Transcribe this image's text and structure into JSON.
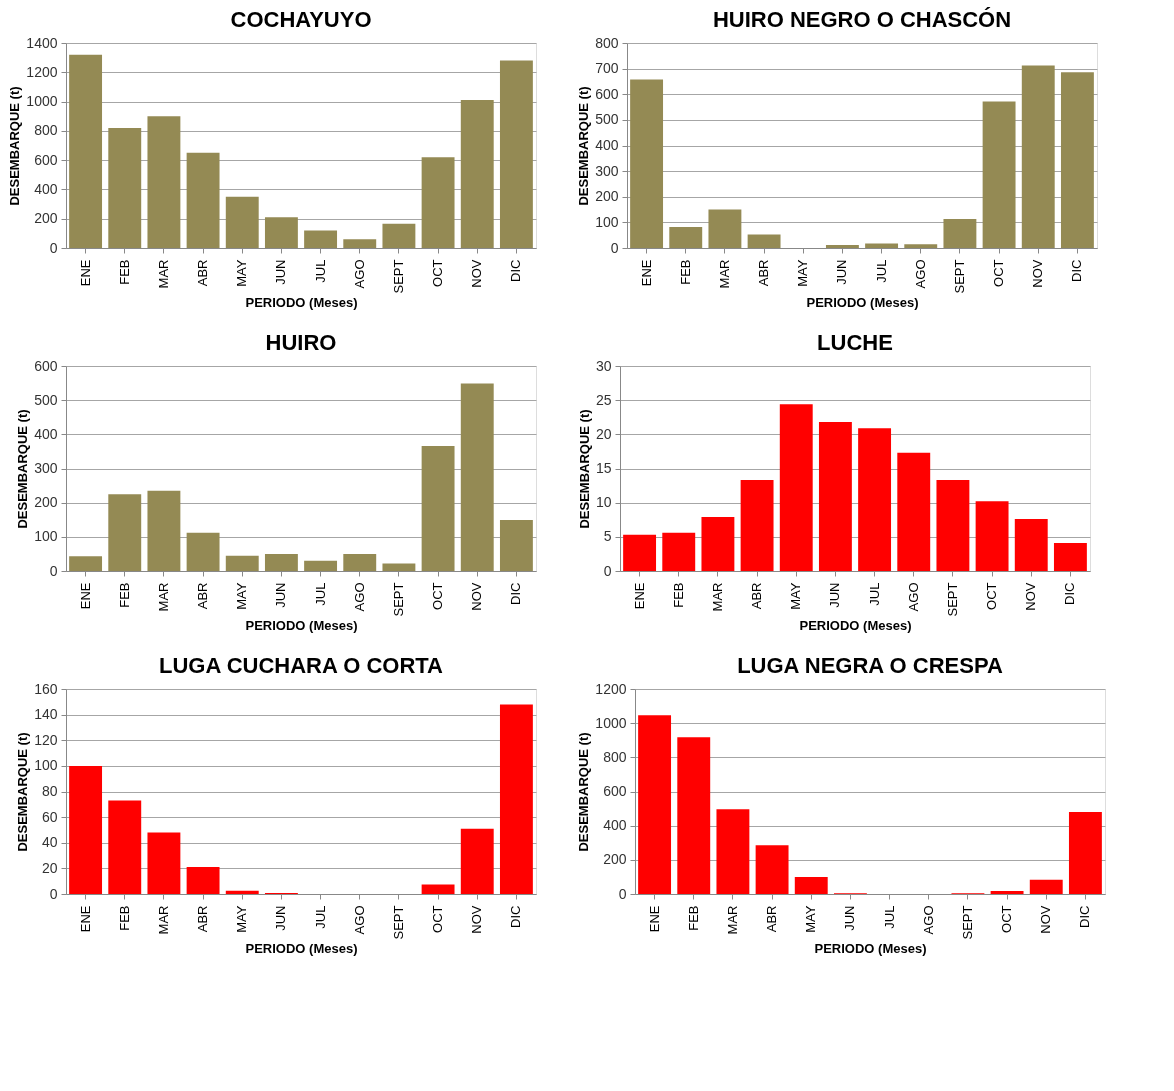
{
  "chart_data": [
    {
      "type": "bar",
      "title": "COCHAYUYO",
      "xlabel": "PERIODO (Meses)",
      "ylabel": "DESEMBARQUE (t)",
      "categories": [
        "ENE",
        "FEB",
        "MAR",
        "ABR",
        "MAY",
        "JUN",
        "JUL",
        "AGO",
        "SEPT",
        "OCT",
        "NOV",
        "DIC"
      ],
      "color": "#948a54",
      "values": [
        1320,
        820,
        900,
        650,
        350,
        210,
        120,
        60,
        165,
        620,
        1010,
        1280
      ],
      "ylim": [
        0,
        1400
      ],
      "yticks": [
        0,
        200,
        400,
        600,
        800,
        1000,
        1200,
        1400
      ],
      "grid": "y"
    },
    {
      "type": "bar",
      "title": "HUIRO NEGRO O CHASCÓN",
      "xlabel": "PERIODO (Meses)",
      "ylabel": "DESEMBARQUE (t)",
      "categories": [
        "ENE",
        "FEB",
        "MAR",
        "ABR",
        "MAY",
        "JUN",
        "JUL",
        "AGO",
        "SEPT",
        "OCT",
        "NOV",
        "DIC"
      ],
      "color": "#948a54",
      "values": [
        658,
        82,
        150,
        53,
        0,
        12,
        18,
        15,
        113,
        572,
        712,
        686
      ],
      "ylim": [
        0,
        800
      ],
      "yticks": [
        0,
        100,
        200,
        300,
        400,
        500,
        600,
        700,
        800
      ],
      "grid": "y"
    },
    {
      "type": "bar",
      "title": "HUIRO",
      "xlabel": "PERIODO (Meses)",
      "ylabel": "DESEMBARQUE (t)",
      "categories": [
        "ENE",
        "FEB",
        "MAR",
        "ABR",
        "MAY",
        "JUN",
        "JUL",
        "AGO",
        "SEPT",
        "OCT",
        "NOV",
        "DIC"
      ],
      "color": "#948a54",
      "values": [
        43,
        225,
        235,
        112,
        45,
        50,
        30,
        50,
        22,
        366,
        549,
        149
      ],
      "ylim": [
        0,
        600
      ],
      "yticks": [
        0,
        100,
        200,
        300,
        400,
        500,
        600
      ],
      "grid": "y"
    },
    {
      "type": "bar",
      "title": "LUCHE",
      "xlabel": "PERIODO (Meses)",
      "ylabel": "DESEMBARQUE (t)",
      "categories": [
        "ENE",
        "FEB",
        "MAR",
        "ABR",
        "MAY",
        "JUN",
        "JUL",
        "AGO",
        "SEPT",
        "OCT",
        "NOV",
        "DIC"
      ],
      "color": "#ff0000",
      "values": [
        5.3,
        5.6,
        7.9,
        13.3,
        24.4,
        21.8,
        20.9,
        17.3,
        13.3,
        10.2,
        7.6,
        4.1
      ],
      "ylim": [
        0,
        30
      ],
      "yticks": [
        0,
        5,
        10,
        15,
        20,
        25,
        30
      ],
      "grid": "y"
    },
    {
      "type": "bar",
      "title": "LUGA CUCHARA O CORTA",
      "xlabel": "PERIODO (Meses)",
      "ylabel": "DESEMBARQUE (t)",
      "categories": [
        "ENE",
        "FEB",
        "MAR",
        "ABR",
        "MAY",
        "JUN",
        "JUL",
        "AGO",
        "SEPT",
        "OCT",
        "NOV",
        "DIC"
      ],
      "color": "#ff0000",
      "values": [
        100,
        73,
        48,
        21,
        2.5,
        0.8,
        0,
        0,
        0,
        7.5,
        51,
        148
      ],
      "ylim": [
        0,
        160
      ],
      "yticks": [
        0,
        20,
        40,
        60,
        80,
        100,
        120,
        140,
        160
      ],
      "grid": "y"
    },
    {
      "type": "bar",
      "title": "LUGA NEGRA O CRESPA",
      "xlabel": "PERIODO (Meses)",
      "ylabel": "DESEMBARQUE (t)",
      "categories": [
        "ENE",
        "FEB",
        "MAR",
        "ABR",
        "MAY",
        "JUN",
        "JUL",
        "AGO",
        "SEPT",
        "OCT",
        "NOV",
        "DIC"
      ],
      "color": "#ff0000",
      "values": [
        1047,
        918,
        496,
        285,
        100,
        5,
        0,
        0,
        5,
        18,
        83,
        480
      ],
      "ylim": [
        0,
        1200
      ],
      "yticks": [
        0,
        200,
        400,
        600,
        800,
        1000,
        1200
      ],
      "grid": "y"
    }
  ]
}
